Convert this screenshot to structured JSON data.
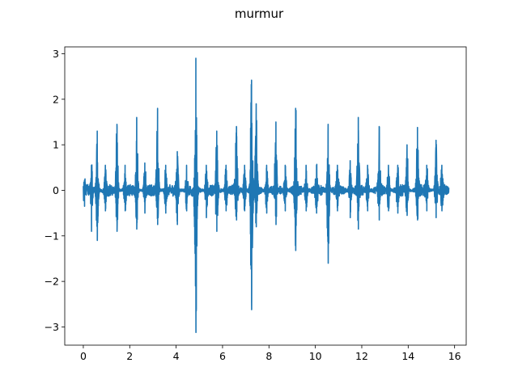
{
  "chart_data": {
    "type": "line",
    "title": "murmur",
    "xlabel": "",
    "ylabel": "",
    "xlim": [
      -0.8,
      16.5
    ],
    "ylim": [
      -3.4,
      3.15
    ],
    "x_ticks": [
      0,
      2,
      4,
      6,
      8,
      10,
      12,
      14,
      16
    ],
    "y_ticks": [
      -3,
      -2,
      -1,
      0,
      1,
      2,
      3
    ],
    "grid": false,
    "line_color": "#1f77b4",
    "series": [
      {
        "name": "",
        "duration": 15.75,
        "noise_amplitude": 0.13,
        "beats": [
          {
            "t": 0.05,
            "up": 0.22,
            "down": -0.35
          },
          {
            "t": 0.35,
            "up": 0.55,
            "down": -0.9
          },
          {
            "t": 0.6,
            "up": 1.3,
            "down": -1.1
          },
          {
            "t": 0.95,
            "up": 0.55,
            "down": -0.45
          },
          {
            "t": 1.45,
            "up": 1.45,
            "down": -0.9
          },
          {
            "t": 1.8,
            "up": 0.55,
            "down": -0.45
          },
          {
            "t": 2.3,
            "up": 1.6,
            "down": -0.85
          },
          {
            "t": 2.65,
            "up": 0.6,
            "down": -0.5
          },
          {
            "t": 3.2,
            "up": 1.8,
            "down": -0.75
          },
          {
            "t": 3.55,
            "up": 0.55,
            "down": -0.5
          },
          {
            "t": 4.05,
            "up": 0.85,
            "down": -0.75
          },
          {
            "t": 4.45,
            "up": 0.55,
            "down": -0.45
          },
          {
            "t": 4.85,
            "up": 2.9,
            "down": -3.12
          },
          {
            "t": 5.3,
            "up": 0.55,
            "down": -0.6
          },
          {
            "t": 5.75,
            "up": 1.3,
            "down": -0.9
          },
          {
            "t": 6.15,
            "up": 0.55,
            "down": -0.45
          },
          {
            "t": 6.6,
            "up": 1.4,
            "down": -0.65
          },
          {
            "t": 6.95,
            "up": 0.55,
            "down": -0.45
          },
          {
            "t": 7.25,
            "up": 2.42,
            "down": -2.62
          },
          {
            "t": 7.45,
            "up": 1.9,
            "down": -0.8
          },
          {
            "t": 7.9,
            "up": 0.55,
            "down": -0.5
          },
          {
            "t": 8.3,
            "up": 1.5,
            "down": -0.75
          },
          {
            "t": 8.7,
            "up": 0.55,
            "down": -0.45
          },
          {
            "t": 9.15,
            "up": 1.8,
            "down": -1.32
          },
          {
            "t": 9.6,
            "up": 0.55,
            "down": -0.45
          },
          {
            "t": 10.05,
            "up": 0.55,
            "down": -0.5
          },
          {
            "t": 10.55,
            "up": 1.45,
            "down": -1.6
          },
          {
            "t": 10.95,
            "up": 0.55,
            "down": -0.45
          },
          {
            "t": 11.5,
            "up": 0.65,
            "down": -0.6
          },
          {
            "t": 11.85,
            "up": 1.6,
            "down": -0.85
          },
          {
            "t": 12.25,
            "up": 0.55,
            "down": -0.45
          },
          {
            "t": 12.75,
            "up": 1.4,
            "down": -0.65
          },
          {
            "t": 13.15,
            "up": 0.55,
            "down": -0.45
          },
          {
            "t": 13.55,
            "up": 0.55,
            "down": -0.5
          },
          {
            "t": 13.95,
            "up": 1.0,
            "down": -0.55
          },
          {
            "t": 14.4,
            "up": 1.38,
            "down": -0.65
          },
          {
            "t": 14.8,
            "up": 0.55,
            "down": -0.45
          },
          {
            "t": 15.2,
            "up": 1.1,
            "down": -0.6
          },
          {
            "t": 15.45,
            "up": 0.55,
            "down": -0.45
          }
        ]
      }
    ]
  }
}
